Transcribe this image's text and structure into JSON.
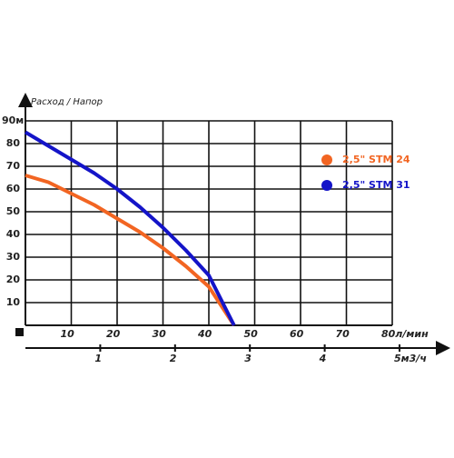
{
  "chart_data": {
    "type": "line",
    "title": "Расход / Напор",
    "x": [
      0,
      5,
      10,
      15,
      20,
      25,
      30,
      35,
      40,
      45.5
    ],
    "series": [
      {
        "name": "2,5\" STM 24",
        "color": "#f26522",
        "values": [
          66,
          63,
          58,
          53,
          47,
          41,
          34,
          26,
          17,
          0
        ]
      },
      {
        "name": "2,5\" STM 31",
        "color": "#1414c8",
        "values": [
          85,
          79,
          73,
          67,
          60,
          52,
          43,
          33,
          22,
          0
        ]
      }
    ],
    "xlim": [
      0,
      80
    ],
    "xticks": [
      10,
      20,
      30,
      40,
      50,
      60,
      70,
      {
        "value": 80,
        "label": "80л/мин"
      }
    ],
    "ylim": [
      0,
      90
    ],
    "yticks": [
      10,
      20,
      30,
      40,
      50,
      60,
      70,
      80,
      {
        "value": 90,
        "label": "90м"
      }
    ],
    "x2lim": [
      0,
      5
    ],
    "x2ticks": [
      1,
      2,
      3,
      4,
      {
        "value": 5,
        "label": "5м3/ч"
      }
    ],
    "grid": true
  }
}
